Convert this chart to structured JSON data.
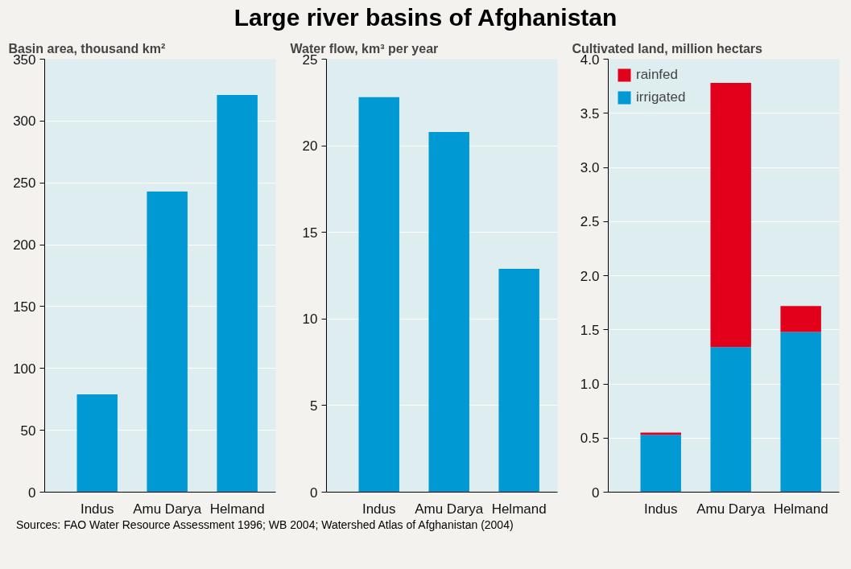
{
  "chart_data": [
    {
      "type": "bar",
      "ylabel": "Basin area, thousand km²",
      "categories": [
        "Indus",
        "Amu Darya",
        "Helmand"
      ],
      "series": [
        {
          "color": "#0099d4",
          "values": [
            79,
            243,
            321
          ]
        }
      ],
      "ylim": [
        0,
        350
      ],
      "yticks": [
        0,
        50,
        100,
        150,
        200,
        250,
        300,
        350
      ],
      "grid": "y",
      "legend": false
    },
    {
      "type": "bar",
      "title": "Large river basins of Afghanistan",
      "ylabel": "Water flow, km³ per year",
      "categories": [
        "Indus",
        "Amu Darya",
        "Helmand"
      ],
      "series": [
        {
          "color": "#0099d4",
          "values": [
            22.8,
            20.8,
            12.9
          ]
        }
      ],
      "ylim": [
        0,
        25
      ],
      "yticks": [
        0,
        5,
        10,
        15,
        20,
        25
      ],
      "grid": "y",
      "legend": false
    },
    {
      "type": "bar",
      "ylabel": "Cultivated land, million hectars",
      "categories": [
        "Indus",
        "Amu Darya",
        "Helmand"
      ],
      "stacked": true,
      "series": [
        {
          "name": "irrigated",
          "color": "#0099d4",
          "values": [
            0.53,
            1.34,
            1.48
          ]
        },
        {
          "name": "rainfed",
          "color": "#e2001a",
          "values": [
            0.02,
            2.44,
            0.24
          ]
        }
      ],
      "ylim": [
        0,
        4.0
      ],
      "yticks": [
        0,
        {
          "value": 0.5,
          "label": "0.5"
        },
        {
          "value": 1,
          "label": "1.0"
        },
        {
          "value": 1.5,
          "label": "1.5"
        },
        {
          "value": 2,
          "label": "2.0"
        },
        {
          "value": 2.5,
          "label": "2.5"
        },
        {
          "value": 3,
          "label": "3.0"
        },
        {
          "value": 3.5,
          "label": "3.5"
        },
        {
          "value": 4,
          "label": "4.0"
        }
      ],
      "grid": "y",
      "legend": "top left",
      "annotations": [
        "Sources: FAO Water Resource Assessment 1996; WB 2004; Watershed Atlas of Afghanistan (2004)"
      ]
    }
  ]
}
